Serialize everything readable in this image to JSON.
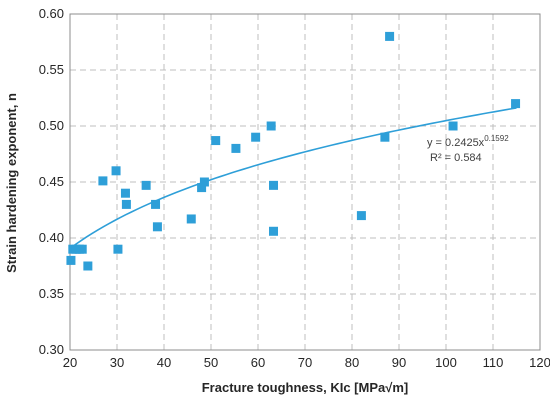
{
  "chart_data": {
    "type": "scatter",
    "title": "",
    "xlabel": "Fracture toughness, KIc [MPa√m]",
    "ylabel": "Strain hardening exponent, n",
    "xlim": [
      20,
      120
    ],
    "ylim": [
      0.3,
      0.6
    ],
    "x_ticks": [
      "20",
      "30",
      "40",
      "50",
      "60",
      "70",
      "80",
      "90",
      "100",
      "110",
      "120"
    ],
    "y_ticks": [
      "0.30",
      "0.35",
      "0.40",
      "0.45",
      "0.50",
      "0.55",
      "0.60"
    ],
    "grid": true,
    "marker_color": "#2e9fd8",
    "trend_color": "#2e9fd8",
    "points": [
      {
        "x": 20.2,
        "y": 0.38
      },
      {
        "x": 20.6,
        "y": 0.39
      },
      {
        "x": 21.3,
        "y": 0.39
      },
      {
        "x": 22.0,
        "y": 0.39
      },
      {
        "x": 22.6,
        "y": 0.39
      },
      {
        "x": 23.8,
        "y": 0.375
      },
      {
        "x": 27.0,
        "y": 0.451
      },
      {
        "x": 29.8,
        "y": 0.46
      },
      {
        "x": 30.2,
        "y": 0.39
      },
      {
        "x": 31.8,
        "y": 0.44
      },
      {
        "x": 32.0,
        "y": 0.43
      },
      {
        "x": 36.2,
        "y": 0.447
      },
      {
        "x": 38.2,
        "y": 0.43
      },
      {
        "x": 38.6,
        "y": 0.41
      },
      {
        "x": 45.8,
        "y": 0.417
      },
      {
        "x": 48.0,
        "y": 0.445
      },
      {
        "x": 48.6,
        "y": 0.45
      },
      {
        "x": 51.0,
        "y": 0.487
      },
      {
        "x": 55.3,
        "y": 0.48
      },
      {
        "x": 59.5,
        "y": 0.49
      },
      {
        "x": 62.8,
        "y": 0.5
      },
      {
        "x": 63.3,
        "y": 0.447
      },
      {
        "x": 63.3,
        "y": 0.406
      },
      {
        "x": 82.0,
        "y": 0.42
      },
      {
        "x": 87.0,
        "y": 0.49
      },
      {
        "x": 88.0,
        "y": 0.58
      },
      {
        "x": 101.5,
        "y": 0.5
      },
      {
        "x": 114.8,
        "y": 0.52
      }
    ],
    "trendline": {
      "type": "power",
      "a": 0.2425,
      "b": 0.1592,
      "x_range": [
        20,
        115
      ],
      "equation_base": "y = 0.2425x",
      "equation_exp": "0.1592",
      "r2_label": "R² = 0.584"
    }
  }
}
